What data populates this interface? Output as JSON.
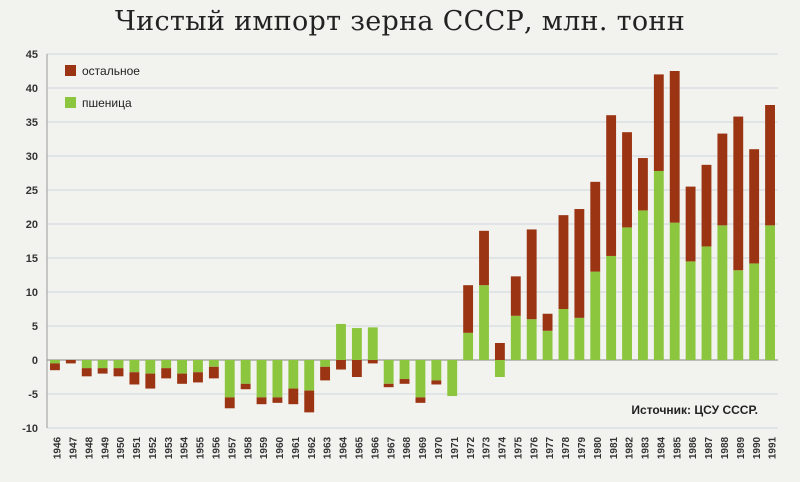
{
  "chart_data": {
    "type": "bar",
    "stacked": true,
    "title": "Чистый импорт зерна СССР, млн. тонн",
    "source": "Источник: ЦСУ СССР.",
    "ylim": [
      -10,
      45
    ],
    "yticks": [
      -10,
      -5,
      0,
      5,
      10,
      15,
      20,
      25,
      30,
      35,
      40,
      45
    ],
    "grid": true,
    "legend_position": "top-left",
    "categories": [
      "1946",
      "1947",
      "1948",
      "1949",
      "1950",
      "1951",
      "1952",
      "1953",
      "1954",
      "1955",
      "1956",
      "1957",
      "1958",
      "1959",
      "1960",
      "1961",
      "1962",
      "1963",
      "1964",
      "1965",
      "1966",
      "1967",
      "1968",
      "1969",
      "1970",
      "1971",
      "1972",
      "1973",
      "1974",
      "1975",
      "1976",
      "1977",
      "1978",
      "1979",
      "1980",
      "1981",
      "1982",
      "1983",
      "1984",
      "1985",
      "1986",
      "1987",
      "1988",
      "1989",
      "1990",
      "1991"
    ],
    "series": [
      {
        "name": "пшеница",
        "color": "#8cc63f",
        "values": [
          -0.5,
          0,
          -1.2,
          -1.2,
          -1.2,
          -1.8,
          -2,
          -1.2,
          -2,
          -1.8,
          -1,
          -5.5,
          -3.5,
          -5.5,
          -5.5,
          -4.2,
          -4.5,
          -1,
          5.3,
          4.7,
          4.8,
          -3.5,
          -2.8,
          -5.5,
          -3,
          -5.3,
          4,
          11,
          -2.5,
          6.5,
          6,
          4.3,
          7.5,
          6.2,
          13,
          15.3,
          19.5,
          22,
          27.8,
          20.2,
          14.5,
          16.7,
          19.8,
          13.2,
          14.2,
          19.8
        ]
      },
      {
        "name": "остальное",
        "color": "#9a3412",
        "values": [
          -1,
          -0.5,
          -1.2,
          -0.8,
          -1.2,
          -1.8,
          -2.2,
          -1.5,
          -1.5,
          -1.5,
          -1.7,
          -1.6,
          -0.8,
          -1,
          -0.8,
          -2.3,
          -3.2,
          -2,
          -1.4,
          -2.5,
          -0.5,
          -0.5,
          -0.7,
          -0.8,
          -0.6,
          0,
          7,
          8,
          2.5,
          5.8,
          13.2,
          2.5,
          13.8,
          16,
          13.2,
          20.7,
          14,
          7.7,
          14.2,
          22.3,
          11,
          12,
          13.5,
          22.6,
          16.8,
          17.7
        ]
      }
    ]
  }
}
